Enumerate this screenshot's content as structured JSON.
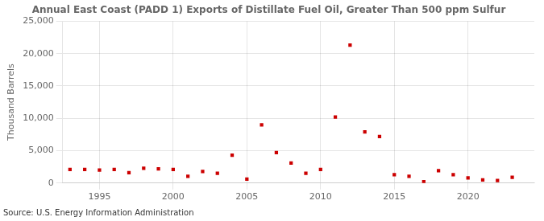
{
  "chart_data": {
    "type": "scatter",
    "title": "Annual East Coast (PADD 1) Exports of Distillate Fuel Oil, Greater Than 500 ppm Sulfur",
    "ylabel": "Thousand Barrels",
    "source": "Source: U.S. Energy Information Administration",
    "x": [
      1993,
      1994,
      1995,
      1996,
      1997,
      1998,
      1999,
      2000,
      2001,
      2002,
      2003,
      2004,
      2005,
      2006,
      2007,
      2008,
      2009,
      2010,
      2011,
      2012,
      2013,
      2014,
      2015,
      2016,
      2017,
      2018,
      2019,
      2020,
      2021,
      2022,
      2023
    ],
    "values": [
      2100,
      2100,
      2000,
      2100,
      1600,
      2300,
      2200,
      2100,
      1050,
      1800,
      1500,
      4300,
      600,
      9000,
      4700,
      3100,
      1500,
      2100,
      10200,
      21300,
      7900,
      7200,
      1300,
      1050,
      200,
      1900,
      1300,
      800,
      500,
      400,
      900
    ],
    "color": "#cc0000",
    "marker": "square",
    "xlim": [
      1992.5,
      2024.5
    ],
    "xticks": [
      1995,
      2000,
      2005,
      2010,
      2015,
      2020
    ],
    "ylim": [
      0,
      25000
    ],
    "yticks": [
      0,
      {
        "value": 5000,
        "label": "5,000"
      },
      {
        "value": 10000,
        "label": "10,000"
      },
      {
        "value": 15000,
        "label": "15,000"
      },
      {
        "value": 20000,
        "label": "20,000"
      },
      {
        "value": 25000,
        "label": "25,000"
      }
    ],
    "grid": true
  }
}
